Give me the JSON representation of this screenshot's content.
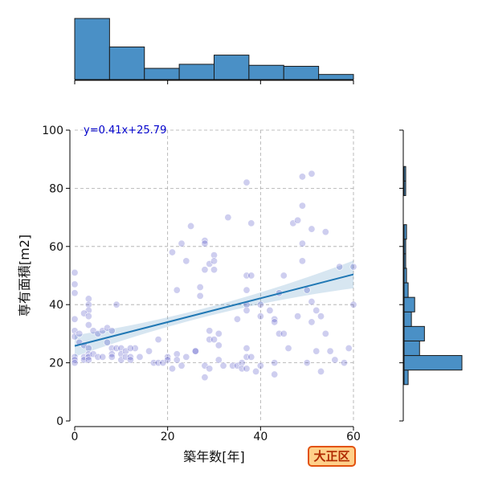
{
  "chart_data": {
    "type": "scatter",
    "xlabel": "築年数[年]",
    "ylabel": "専有面積[m2]",
    "xlim": [
      0,
      60
    ],
    "ylim": [
      0,
      100
    ],
    "xticks": [
      "0",
      "20",
      "40",
      "60"
    ],
    "yticks": [
      "0",
      "20",
      "40",
      "60",
      "80",
      "100"
    ],
    "grid": true,
    "regression": {
      "label": "y=0.41x+25.79",
      "slope": 0.41,
      "intercept": 25.79,
      "confidence_band": true
    },
    "points": [
      [
        0,
        51
      ],
      [
        0,
        47
      ],
      [
        0,
        44
      ],
      [
        0,
        35
      ],
      [
        0,
        31
      ],
      [
        0,
        29
      ],
      [
        0,
        22
      ],
      [
        0,
        21
      ],
      [
        0,
        20
      ],
      [
        1,
        27
      ],
      [
        1,
        30
      ],
      [
        2,
        26
      ],
      [
        2,
        22
      ],
      [
        2,
        21
      ],
      [
        3,
        42
      ],
      [
        3,
        40
      ],
      [
        3,
        38
      ],
      [
        3,
        33
      ],
      [
        3,
        25
      ],
      [
        3,
        23
      ],
      [
        3,
        22
      ],
      [
        3,
        21
      ],
      [
        4,
        31
      ],
      [
        4,
        23
      ],
      [
        5,
        30
      ],
      [
        5,
        22
      ],
      [
        6,
        31
      ],
      [
        6,
        22
      ],
      [
        7,
        32
      ],
      [
        7,
        27
      ],
      [
        8,
        31
      ],
      [
        8,
        25
      ],
      [
        8,
        23
      ],
      [
        8,
        22
      ],
      [
        9,
        40
      ],
      [
        9,
        25
      ],
      [
        10,
        25
      ],
      [
        10,
        23
      ],
      [
        10,
        21
      ],
      [
        11,
        24
      ],
      [
        11,
        22
      ],
      [
        12,
        22
      ],
      [
        12,
        21
      ],
      [
        13,
        25
      ],
      [
        14,
        22
      ],
      [
        16,
        24
      ],
      [
        17,
        20
      ],
      [
        18,
        28
      ],
      [
        18,
        20
      ],
      [
        19,
        20
      ],
      [
        20,
        22
      ],
      [
        20,
        21
      ],
      [
        21,
        58
      ],
      [
        21,
        18
      ],
      [
        22,
        23
      ],
      [
        22,
        21
      ],
      [
        23,
        61
      ],
      [
        23,
        19
      ],
      [
        24,
        55
      ],
      [
        24,
        22
      ],
      [
        25,
        67
      ],
      [
        26,
        24
      ],
      [
        27,
        46
      ],
      [
        27,
        43
      ],
      [
        28,
        62
      ],
      [
        28,
        61
      ],
      [
        28,
        52
      ],
      [
        28,
        19
      ],
      [
        28,
        15
      ],
      [
        29,
        54
      ],
      [
        29,
        31
      ],
      [
        29,
        28
      ],
      [
        29,
        18
      ],
      [
        30,
        57
      ],
      [
        30,
        55
      ],
      [
        30,
        52
      ],
      [
        30,
        28
      ],
      [
        31,
        30
      ],
      [
        31,
        26
      ],
      [
        31,
        21
      ],
      [
        32,
        19
      ],
      [
        33,
        70
      ],
      [
        34,
        19
      ],
      [
        35,
        35
      ],
      [
        35,
        19
      ],
      [
        36,
        20
      ],
      [
        36,
        18
      ],
      [
        37,
        82
      ],
      [
        37,
        50
      ],
      [
        37,
        45
      ],
      [
        37,
        40
      ],
      [
        37,
        38
      ],
      [
        37,
        25
      ],
      [
        37,
        22
      ],
      [
        37,
        18
      ],
      [
        38,
        68
      ],
      [
        38,
        50
      ],
      [
        38,
        22
      ],
      [
        39,
        17
      ],
      [
        40,
        40
      ],
      [
        40,
        36
      ],
      [
        40,
        19
      ],
      [
        42,
        38
      ],
      [
        43,
        35
      ],
      [
        43,
        34
      ],
      [
        43,
        20
      ],
      [
        43,
        16
      ],
      [
        44,
        44
      ],
      [
        44,
        30
      ],
      [
        45,
        50
      ],
      [
        45,
        30
      ],
      [
        46,
        25
      ],
      [
        47,
        68
      ],
      [
        48,
        69
      ],
      [
        48,
        36
      ],
      [
        49,
        74
      ],
      [
        49,
        61
      ],
      [
        49,
        55
      ],
      [
        49,
        84
      ],
      [
        50,
        45
      ],
      [
        50,
        20
      ],
      [
        51,
        85
      ],
      [
        51,
        66
      ],
      [
        51,
        41
      ],
      [
        51,
        34
      ],
      [
        52,
        38
      ],
      [
        52,
        24
      ],
      [
        53,
        36
      ],
      [
        53,
        17
      ],
      [
        54,
        65
      ],
      [
        54,
        30
      ],
      [
        55,
        24
      ],
      [
        56,
        21
      ],
      [
        57,
        53
      ],
      [
        58,
        20
      ],
      [
        59,
        25
      ],
      [
        60,
        40
      ],
      [
        60,
        53
      ],
      [
        2,
        37
      ],
      [
        3,
        36
      ],
      [
        12,
        25
      ],
      [
        22,
        45
      ],
      [
        26,
        24
      ]
    ],
    "x_hist": {
      "bins": [
        0,
        7.5,
        15,
        22.5,
        30,
        37.5,
        45,
        52.5,
        60
      ],
      "counts": [
        60,
        32,
        11,
        15,
        24,
        14,
        13,
        5
      ]
    },
    "y_hist": {
      "bins": [
        12.5,
        17.5,
        22.5,
        27.5,
        32.5,
        37.5,
        42.5,
        47.5,
        52.5,
        57.5,
        62.5,
        67.5,
        72.5,
        77.5,
        82.5,
        87.5
      ],
      "counts": [
        5,
        71,
        19,
        25,
        9,
        13,
        5,
        3,
        2,
        2,
        3,
        0,
        0,
        2,
        2
      ]
    }
  },
  "badge": {
    "text": "大正区"
  }
}
